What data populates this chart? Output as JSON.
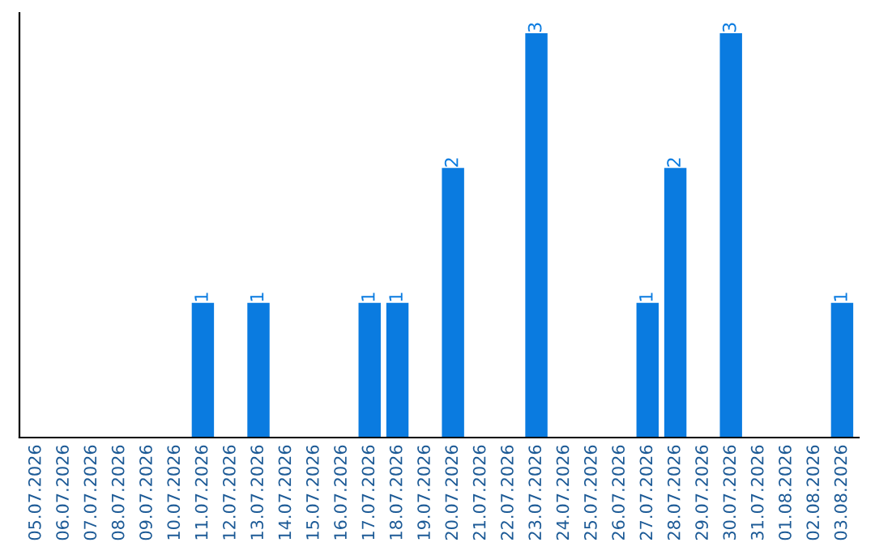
{
  "chart_data": {
    "type": "bar",
    "categories": [
      "05.07.2026",
      "06.07.2026",
      "07.07.2026",
      "08.07.2026",
      "09.07.2026",
      "10.07.2026",
      "11.07.2026",
      "12.07.2026",
      "13.07.2026",
      "14.07.2026",
      "15.07.2026",
      "16.07.2026",
      "17.07.2026",
      "18.07.2026",
      "19.07.2026",
      "20.07.2026",
      "21.07.2026",
      "22.07.2026",
      "23.07.2026",
      "24.07.2026",
      "25.07.2026",
      "26.07.2026",
      "27.07.2026",
      "28.07.2026",
      "29.07.2026",
      "30.07.2026",
      "31.07.2026",
      "01.08.2026",
      "02.08.2026",
      "03.08.2026"
    ],
    "values": [
      0,
      0,
      0,
      0,
      0,
      0,
      1,
      0,
      1,
      0,
      0,
      0,
      1,
      1,
      0,
      2,
      0,
      0,
      3,
      0,
      0,
      0,
      1,
      2,
      0,
      3,
      0,
      0,
      0,
      1
    ],
    "value_labels": [
      null,
      null,
      null,
      null,
      null,
      null,
      "1",
      null,
      "1",
      null,
      null,
      null,
      "1",
      "1",
      null,
      "2",
      null,
      null,
      "3",
      null,
      null,
      null,
      "1",
      "2",
      null,
      "3",
      null,
      null,
      null,
      "1"
    ],
    "color": "#0a7be0",
    "tick_labels": "x",
    "grid": false
  }
}
